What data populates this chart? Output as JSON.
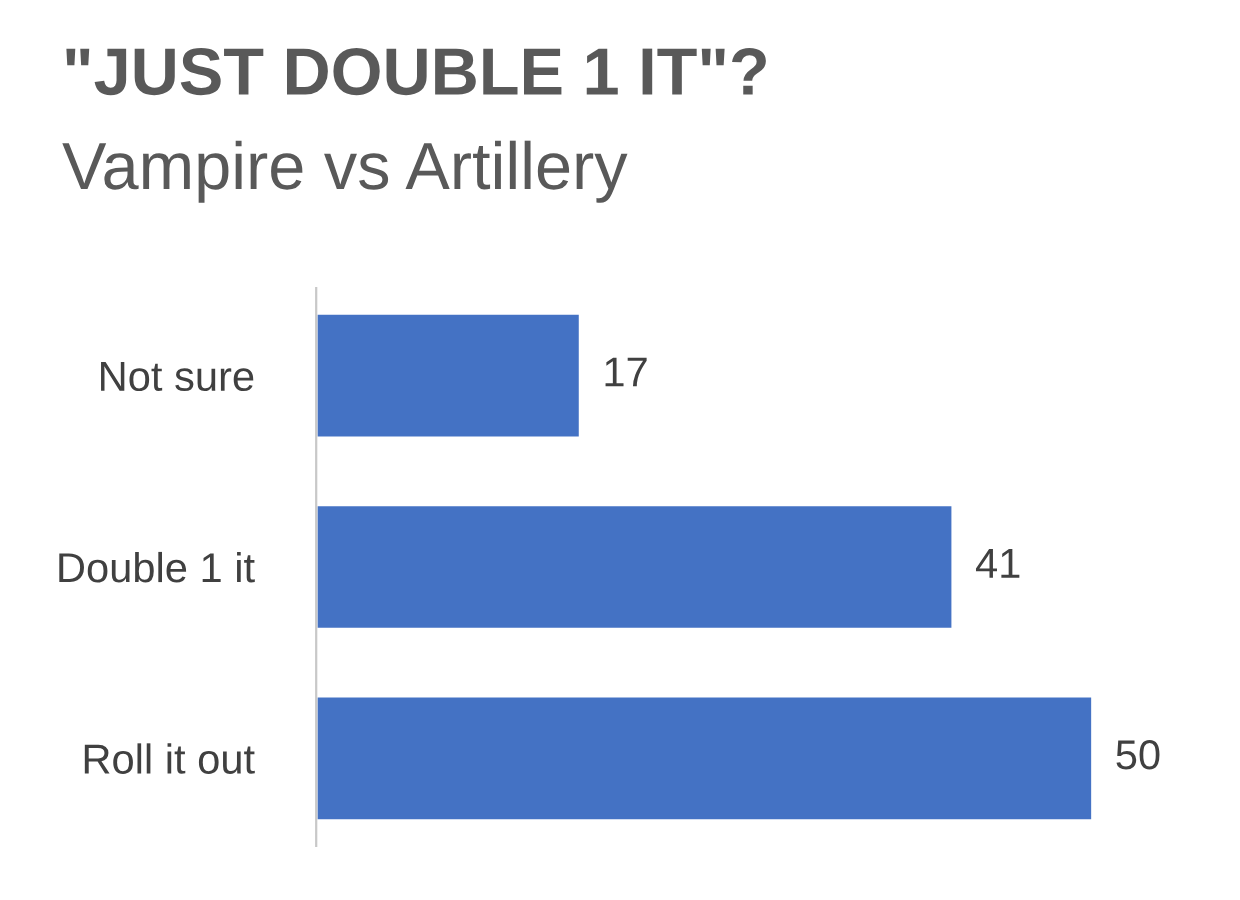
{
  "chart_data": {
    "type": "bar",
    "orientation": "horizontal",
    "title": "\"JUST DOUBLE 1 IT\"?",
    "subtitle": "Vampire vs Artillery",
    "categories": [
      "Not sure",
      "Double 1 it",
      "Roll it out"
    ],
    "values": [
      17,
      41,
      50
    ],
    "color": "#4472c4",
    "data_labels": true,
    "tick_labels": "y",
    "grid": false,
    "legend": false
  }
}
